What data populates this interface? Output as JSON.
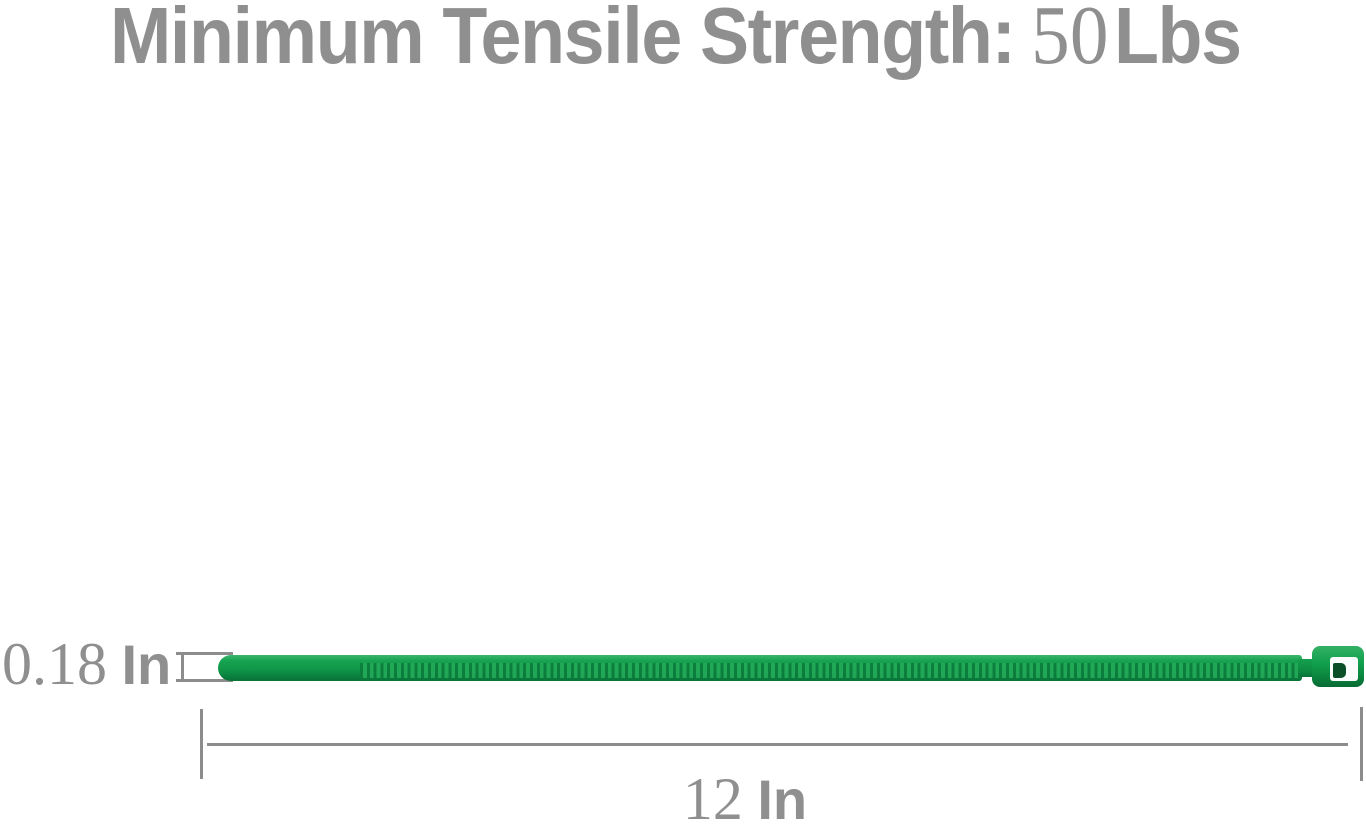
{
  "title": {
    "label": "Minimum Tensile Strength:",
    "value": "50",
    "unit": "Lbs"
  },
  "figure": {
    "subject": "green nylon cable tie, side view with dimension callouts"
  },
  "dimensions": {
    "width": {
      "value": "0.18",
      "unit": "In"
    },
    "length": {
      "value": "12",
      "unit": "In"
    }
  },
  "colors": {
    "text-gray": "#8f8f8f",
    "line-gray": "#8c8c8c",
    "tie-green": "#0f9747",
    "tie-green-light": "#3cb46c",
    "tie-green-dark": "#086a33",
    "head-slot-white": "#fbfcfc",
    "pawl-dark-green": "#0b4f28"
  }
}
